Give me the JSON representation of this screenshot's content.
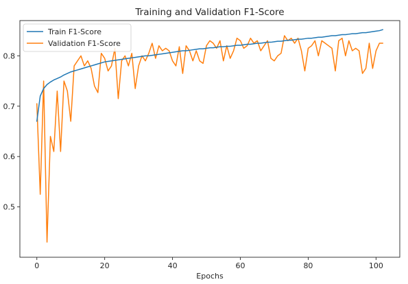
{
  "chart_data": {
    "type": "line",
    "title": "Training and Validation F1-Score",
    "xlabel": "Epochs",
    "ylabel": "",
    "xlim": [
      -5,
      107
    ],
    "ylim": [
      0.4,
      0.87
    ],
    "xticks": [
      0,
      20,
      40,
      60,
      80,
      100
    ],
    "yticks": [
      0.5,
      0.6,
      0.7,
      0.8
    ],
    "grid": false,
    "legend_position": "top-left",
    "series": [
      {
        "name": "Train F1-Score",
        "color": "#1f77b4",
        "x": [
          0,
          1,
          2,
          3,
          4,
          5,
          6,
          7,
          8,
          9,
          10,
          11,
          12,
          13,
          14,
          15,
          16,
          17,
          18,
          19,
          20,
          21,
          22,
          23,
          24,
          25,
          26,
          27,
          28,
          29,
          30,
          31,
          32,
          33,
          34,
          35,
          36,
          37,
          38,
          39,
          40,
          41,
          42,
          43,
          44,
          45,
          46,
          47,
          48,
          49,
          50,
          51,
          52,
          53,
          54,
          55,
          56,
          57,
          58,
          59,
          60,
          61,
          62,
          63,
          64,
          65,
          66,
          67,
          68,
          69,
          70,
          71,
          72,
          73,
          74,
          75,
          76,
          77,
          78,
          79,
          80,
          81,
          82,
          83,
          84,
          85,
          86,
          87,
          88,
          89,
          90,
          91,
          92,
          93,
          94,
          95,
          96,
          97,
          98,
          99,
          100,
          101,
          102
        ],
        "values": [
          0.67,
          0.72,
          0.735,
          0.743,
          0.748,
          0.752,
          0.755,
          0.758,
          0.762,
          0.765,
          0.768,
          0.77,
          0.772,
          0.774,
          0.776,
          0.778,
          0.78,
          0.782,
          0.784,
          0.786,
          0.788,
          0.789,
          0.79,
          0.791,
          0.792,
          0.793,
          0.794,
          0.795,
          0.796,
          0.797,
          0.798,
          0.799,
          0.8,
          0.8,
          0.801,
          0.802,
          0.803,
          0.804,
          0.805,
          0.806,
          0.807,
          0.808,
          0.809,
          0.81,
          0.81,
          0.811,
          0.812,
          0.813,
          0.814,
          0.814,
          0.815,
          0.816,
          0.816,
          0.817,
          0.818,
          0.818,
          0.819,
          0.819,
          0.82,
          0.821,
          0.821,
          0.822,
          0.823,
          0.823,
          0.824,
          0.825,
          0.825,
          0.826,
          0.827,
          0.827,
          0.828,
          0.829,
          0.829,
          0.83,
          0.831,
          0.831,
          0.832,
          0.833,
          0.833,
          0.834,
          0.835,
          0.835,
          0.836,
          0.837,
          0.837,
          0.838,
          0.839,
          0.84,
          0.84,
          0.841,
          0.842,
          0.842,
          0.843,
          0.844,
          0.844,
          0.845,
          0.846,
          0.846,
          0.847,
          0.848,
          0.849,
          0.85,
          0.852
        ]
      },
      {
        "name": "Validation F1-Score",
        "color": "#ff7f0e",
        "x": [
          0,
          1,
          2,
          3,
          4,
          5,
          6,
          7,
          8,
          9,
          10,
          11,
          12,
          13,
          14,
          15,
          16,
          17,
          18,
          19,
          20,
          21,
          22,
          23,
          24,
          25,
          26,
          27,
          28,
          29,
          30,
          31,
          32,
          33,
          34,
          35,
          36,
          37,
          38,
          39,
          40,
          41,
          42,
          43,
          44,
          45,
          46,
          47,
          48,
          49,
          50,
          51,
          52,
          53,
          54,
          55,
          56,
          57,
          58,
          59,
          60,
          61,
          62,
          63,
          64,
          65,
          66,
          67,
          68,
          69,
          70,
          71,
          72,
          73,
          74,
          75,
          76,
          77,
          78,
          79,
          80,
          81,
          82,
          83,
          84,
          85,
          86,
          87,
          88,
          89,
          90,
          91,
          92,
          93,
          94,
          95,
          96,
          97,
          98,
          99,
          100,
          101,
          102
        ],
        "values": [
          0.705,
          0.525,
          0.75,
          0.43,
          0.64,
          0.61,
          0.73,
          0.61,
          0.75,
          0.73,
          0.67,
          0.78,
          0.79,
          0.8,
          0.78,
          0.79,
          0.775,
          0.74,
          0.727,
          0.805,
          0.795,
          0.77,
          0.78,
          0.815,
          0.715,
          0.79,
          0.8,
          0.78,
          0.805,
          0.735,
          0.78,
          0.8,
          0.79,
          0.805,
          0.825,
          0.795,
          0.82,
          0.81,
          0.815,
          0.81,
          0.79,
          0.78,
          0.818,
          0.765,
          0.82,
          0.81,
          0.79,
          0.81,
          0.79,
          0.785,
          0.82,
          0.83,
          0.825,
          0.815,
          0.83,
          0.79,
          0.82,
          0.795,
          0.81,
          0.835,
          0.83,
          0.815,
          0.82,
          0.835,
          0.825,
          0.83,
          0.81,
          0.82,
          0.83,
          0.795,
          0.79,
          0.8,
          0.805,
          0.84,
          0.83,
          0.835,
          0.825,
          0.835,
          0.81,
          0.77,
          0.815,
          0.82,
          0.83,
          0.8,
          0.83,
          0.825,
          0.82,
          0.815,
          0.77,
          0.83,
          0.835,
          0.8,
          0.83,
          0.81,
          0.815,
          0.81,
          0.765,
          0.775,
          0.825,
          0.775,
          0.81,
          0.825,
          0.825
        ]
      }
    ]
  }
}
